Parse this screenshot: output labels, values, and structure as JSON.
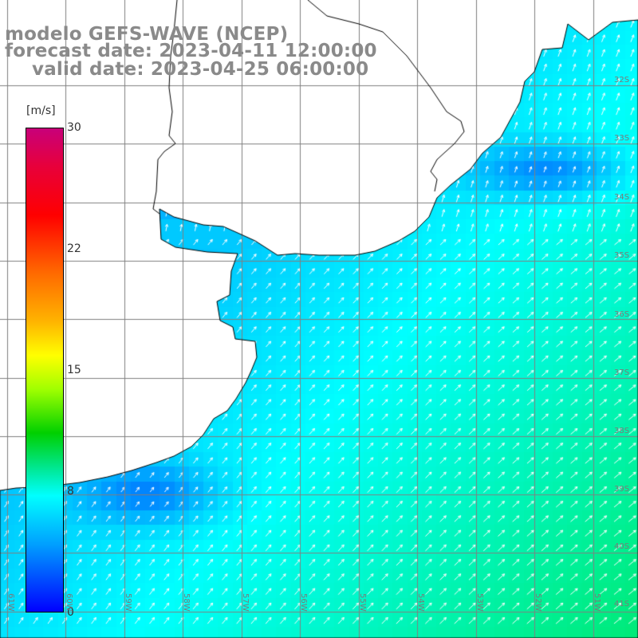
{
  "header": {
    "model": "modelo GEFS-WAVE (NCEP)",
    "forecast": "forecast date: 2023-04-11 12:00:00",
    "valid": "valid date: 2023-04-25 06:00:00"
  },
  "colorbar": {
    "unit": "[m/s]",
    "ticks": [
      "30",
      "22",
      "15",
      "8",
      "0"
    ],
    "tick_values": [
      30,
      22,
      15,
      8,
      0
    ]
  },
  "lat_labels": [
    "32S",
    "33S",
    "34S",
    "35S",
    "36S",
    "37S",
    "38S",
    "39S",
    "40S",
    "41S"
  ],
  "lon_labels": [
    "61W",
    "60W",
    "59W",
    "58W",
    "57W",
    "56W",
    "55W",
    "54W",
    "53W",
    "52W",
    "51W"
  ],
  "colors": {
    "land": "#ffffff",
    "grid": "#808080",
    "coast": "#000000",
    "arrow": "#ffffff",
    "title": "#8a8a8a"
  }
}
